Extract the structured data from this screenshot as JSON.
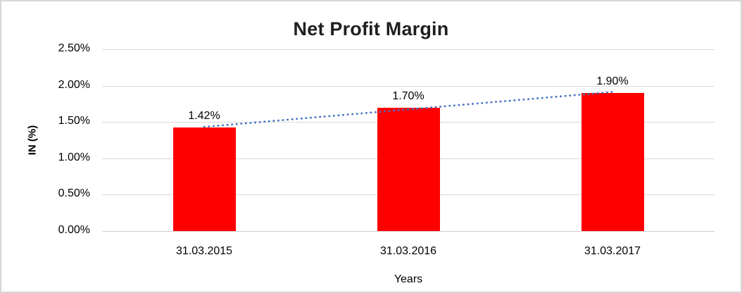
{
  "chart": {
    "title": "Net Profit Margin",
    "x_axis_title": "Years",
    "y_axis_title": "IN (%)"
  },
  "chart_data": {
    "type": "bar",
    "title": "Net Profit Margin",
    "categories": [
      "31.03.2015",
      "31.03.2016",
      "31.03.2017"
    ],
    "values": [
      1.42,
      1.7,
      1.9
    ],
    "data_labels": [
      "1.42%",
      "1.70%",
      "1.90%"
    ],
    "xlabel": "Years",
    "ylabel": "IN (%)",
    "ylim": [
      0,
      2.5
    ],
    "ytick_step": 0.5,
    "ytick_labels": [
      "0.00%",
      "0.50%",
      "1.00%",
      "1.50%",
      "2.00%",
      "2.50%"
    ],
    "grid": true,
    "legend": "none",
    "bar_color": "#FF0000",
    "gridline_color": "#d9d9d9",
    "trendline": {
      "type": "linear",
      "style": "dotted",
      "color": "#4472C4"
    }
  }
}
